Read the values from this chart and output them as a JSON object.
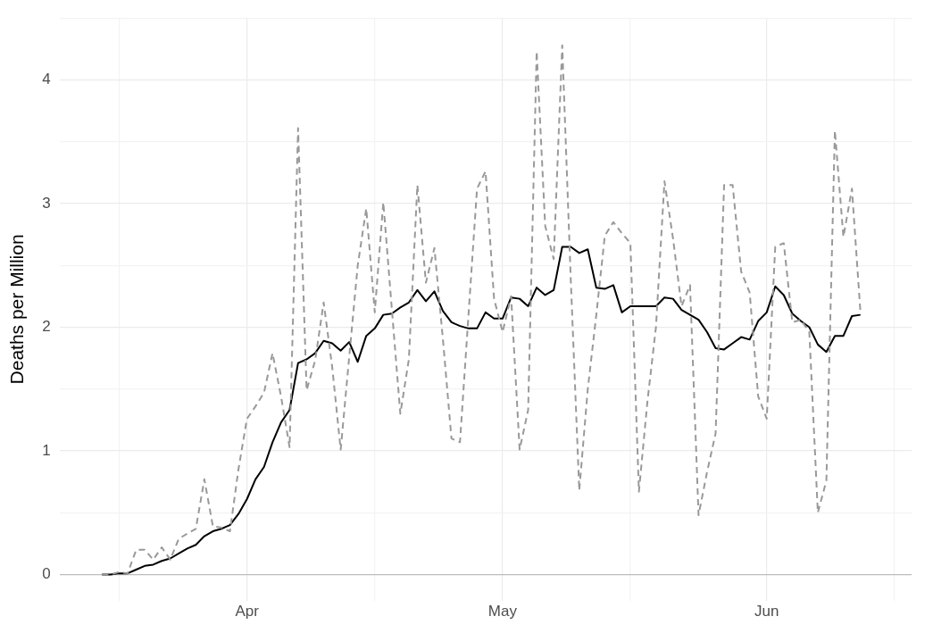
{
  "chart_data": {
    "type": "line",
    "ylabel": "Deaths per Million",
    "x": [
      "--03-15",
      "--03-16",
      "--03-17",
      "--03-18",
      "--03-19",
      "--03-20",
      "--03-21",
      "--03-22",
      "--03-23",
      "--03-24",
      "--03-25",
      "--03-26",
      "--03-27",
      "--03-28",
      "--03-29",
      "--03-30",
      "--03-31",
      "--04-01",
      "--04-02",
      "--04-03",
      "--04-04",
      "--04-05",
      "--04-06",
      "--04-07",
      "--04-08",
      "--04-09",
      "--04-10",
      "--04-11",
      "--04-12",
      "--04-13",
      "--04-14",
      "--04-15",
      "--04-16",
      "--04-17",
      "--04-18",
      "--04-19",
      "--04-20",
      "--04-21",
      "--04-22",
      "--04-23",
      "--04-24",
      "--04-25",
      "--04-26",
      "--04-27",
      "--04-28",
      "--04-29",
      "--04-30",
      "--05-01",
      "--05-02",
      "--05-03",
      "--05-04",
      "--05-05",
      "--05-06",
      "--05-07",
      "--05-08",
      "--05-09",
      "--05-10",
      "--05-11",
      "--05-12",
      "--05-13",
      "--05-14",
      "--05-15",
      "--05-16",
      "--05-17",
      "--05-18",
      "--05-19",
      "--05-20",
      "--05-21",
      "--05-22",
      "--05-23",
      "--05-24",
      "--05-25",
      "--05-26",
      "--05-27",
      "--05-28",
      "--05-29",
      "--05-30",
      "--05-31",
      "--06-01",
      "--06-02",
      "--06-03",
      "--06-04",
      "--06-05",
      "--06-06",
      "--06-07",
      "--06-08",
      "--06-09",
      "--06-10",
      "--06-11",
      "--06-12"
    ],
    "series": [
      {
        "color": "#999999",
        "line_style": "dashed",
        "values": [
          0,
          0,
          0.02,
          0.01,
          0.2,
          0.2,
          0.12,
          0.22,
          0.12,
          0.29,
          0.33,
          0.37,
          0.77,
          0.39,
          0.38,
          0.35,
          0.85,
          1.26,
          1.36,
          1.47,
          1.79,
          1.44,
          1.03,
          3.61,
          1.49,
          1.73,
          2.2,
          1.68,
          1.01,
          1.76,
          2.5,
          2.96,
          2.12,
          3.01,
          2.15,
          1.3,
          1.74,
          3.15,
          2.36,
          2.64,
          1.9,
          1.1,
          1.07,
          2.1,
          3.12,
          3.26,
          2.23,
          1.96,
          2.25,
          1.01,
          1.33,
          4.23,
          2.82,
          2.55,
          4.28,
          2.39,
          0.68,
          1.5,
          2.1,
          2.74,
          2.85,
          2.76,
          2.68,
          0.67,
          1.4,
          2.0,
          3.18,
          2.72,
          2.17,
          2.34,
          0.48,
          0.83,
          1.14,
          3.15,
          3.15,
          2.45,
          2.28,
          1.44,
          1.26,
          2.65,
          2.68,
          2.04,
          2.06,
          1.96,
          0.5,
          0.76,
          3.59,
          2.73,
          3.12,
          2.12
        ]
      },
      {
        "color": "#000000",
        "line_style": "solid",
        "values": [
          0,
          0,
          0.01,
          0.01,
          0.04,
          0.07,
          0.08,
          0.11,
          0.13,
          0.17,
          0.21,
          0.24,
          0.31,
          0.35,
          0.37,
          0.4,
          0.49,
          0.61,
          0.77,
          0.87,
          1.07,
          1.23,
          1.33,
          1.71,
          1.74,
          1.79,
          1.89,
          1.87,
          1.81,
          1.88,
          1.72,
          1.93,
          1.99,
          2.1,
          2.11,
          2.16,
          2.2,
          2.3,
          2.21,
          2.29,
          2.13,
          2.04,
          2.01,
          1.99,
          1.99,
          2.12,
          2.07,
          2.07,
          2.24,
          2.23,
          2.17,
          2.32,
          2.26,
          2.3,
          2.65,
          2.65,
          2.6,
          2.63,
          2.32,
          2.31,
          2.34,
          2.12,
          2.17,
          2.17,
          2.17,
          2.17,
          2.24,
          2.23,
          2.14,
          2.1,
          2.06,
          1.96,
          1.83,
          1.82,
          1.87,
          1.92,
          1.9,
          2.05,
          2.12,
          2.33,
          2.26,
          2.11,
          2.05,
          2.0,
          1.86,
          1.8,
          1.93,
          1.93,
          2.09,
          2.1
        ]
      }
    ],
    "xlim": [
      "--03-10",
      "--06-18"
    ],
    "xticks": [
      {
        "value": "--03-17",
        "label": null
      },
      {
        "value": "--04-01",
        "label": "Apr"
      },
      {
        "value": "--04-16",
        "label": null
      },
      {
        "value": "--05-01",
        "label": "May"
      },
      {
        "value": "--05-16",
        "label": null
      },
      {
        "value": "--06-01",
        "label": "Jun"
      },
      {
        "value": "--06-16",
        "label": null
      }
    ],
    "ylim": [
      -0.21,
      4.5
    ],
    "yticks": [
      0,
      {
        "value": 0.5,
        "label": null
      },
      1,
      {
        "value": 1.5,
        "label": null
      },
      2,
      {
        "value": 2.5,
        "label": null
      },
      3,
      {
        "value": 3.5,
        "label": null
      },
      4,
      {
        "value": 4.5,
        "label": null
      }
    ],
    "grid": true,
    "legend": false,
    "marker": "none"
  }
}
